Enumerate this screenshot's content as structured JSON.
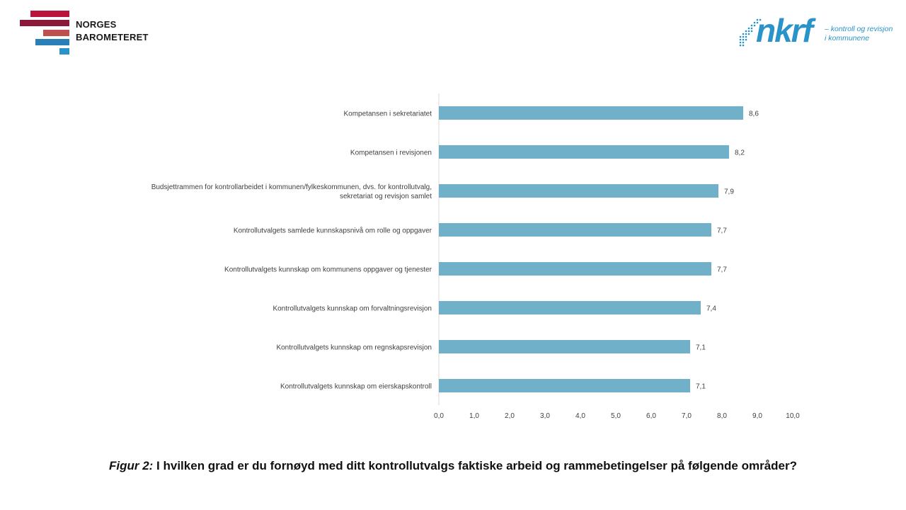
{
  "brand": {
    "name_line1": "NORGES",
    "name_line2": "BAROMETERET",
    "stripe_colors": [
      "#b8143c",
      "#8b1a3a",
      "#c0504d",
      "#2a7fb8",
      "#2a93c9"
    ]
  },
  "partner": {
    "logo_word": "nkrf",
    "tagline_line1": "– kontroll og revisjon",
    "tagline_line2": "i kommunene",
    "color": "#2a93c9"
  },
  "caption": {
    "prefix": "Figur 2:",
    "text": " I hvilken grad er du fornøyd med ditt kontrollutvalgs  faktiske arbeid og rammebetingelser på følgende områder?"
  },
  "chart_data": {
    "type": "bar",
    "orientation": "horizontal",
    "bar_color": "#70b0c8",
    "categories": [
      [
        "Kompetansen i sekretariatet"
      ],
      [
        "Kompetansen i revisjonen"
      ],
      [
        "Budsjettrammen for kontrollarbeidet i kommunen/fylkeskommunen, dvs. for kontrollutvalg,",
        "sekretariat og revisjon samlet"
      ],
      [
        "Kontrollutvalgets samlede kunnskapsnivå om rolle og oppgaver"
      ],
      [
        "Kontrollutvalgets kunnskap om kommunens oppgaver og tjenester"
      ],
      [
        "Kontrollutvalgets kunnskap om forvaltningsrevisjon"
      ],
      [
        "Kontrollutvalgets kunnskap om regnskapsrevisjon"
      ],
      [
        "Kontrollutvalgets kunnskap om eierskapskontroll"
      ]
    ],
    "values": [
      8.6,
      8.2,
      7.9,
      7.7,
      7.7,
      7.4,
      7.1,
      7.1
    ],
    "value_labels": [
      "8,6",
      "8,2",
      "7,9",
      "7,7",
      "7,7",
      "7,4",
      "7,1",
      "7,1"
    ],
    "xlim": [
      0,
      10
    ],
    "x_ticks": [
      "0,0",
      "1,0",
      "2,0",
      "3,0",
      "4,0",
      "5,0",
      "6,0",
      "7,0",
      "8,0",
      "9,0",
      "10,0"
    ],
    "grid": false,
    "legend": "none"
  }
}
